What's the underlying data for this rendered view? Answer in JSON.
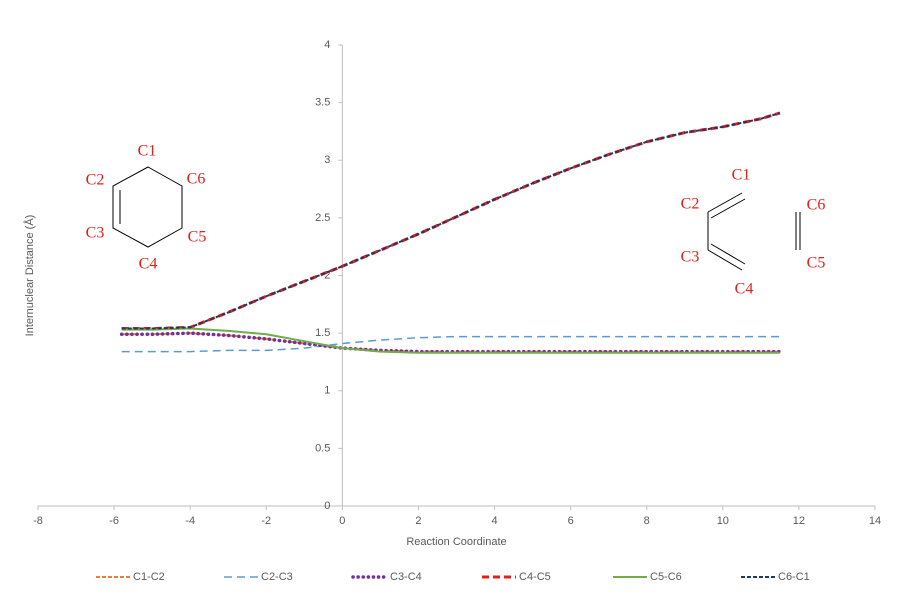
{
  "chart_data": {
    "type": "line",
    "x_label": "Reaction Coordinate",
    "y_label": "Internuclear Distance (Å)",
    "xlim": [
      -8,
      14
    ],
    "xticks": [
      -8,
      -6,
      -4,
      -2,
      0,
      2,
      4,
      6,
      8,
      10,
      12,
      14
    ],
    "ylim": [
      0,
      4
    ],
    "yticks": [
      0,
      0.5,
      1,
      1.5,
      2,
      2.5,
      3,
      3.5,
      4
    ],
    "grid": false,
    "legend": "bottom",
    "x": [
      -5.8,
      -5,
      -4,
      -3,
      -2,
      -1,
      0,
      1,
      2,
      3,
      4,
      5,
      6,
      7,
      8,
      9,
      10,
      11,
      11.5
    ],
    "series": [
      {
        "name": "C1-C2",
        "color": "#ed7d31",
        "line_style": "dashed",
        "values": [
          1.49,
          1.49,
          1.5,
          1.48,
          1.45,
          1.41,
          1.37,
          1.35,
          1.34,
          1.34,
          1.34,
          1.34,
          1.34,
          1.34,
          1.34,
          1.34,
          1.34,
          1.34,
          1.34
        ]
      },
      {
        "name": "C2-C3",
        "color": "#5b9bd5",
        "line_style": "long-dashed",
        "values": [
          1.34,
          1.34,
          1.34,
          1.35,
          1.35,
          1.37,
          1.41,
          1.44,
          1.46,
          1.47,
          1.47,
          1.47,
          1.47,
          1.47,
          1.47,
          1.47,
          1.47,
          1.47,
          1.47
        ]
      },
      {
        "name": "C3-C4",
        "color": "#7030a0",
        "line_style": "dotted",
        "values": [
          1.49,
          1.49,
          1.5,
          1.48,
          1.45,
          1.41,
          1.37,
          1.35,
          1.34,
          1.34,
          1.34,
          1.34,
          1.34,
          1.34,
          1.34,
          1.34,
          1.34,
          1.34,
          1.34
        ]
      },
      {
        "name": "C4-C5",
        "color": "#e0201b",
        "line_style": "bold-dashed",
        "values": [
          1.54,
          1.54,
          1.55,
          1.68,
          1.82,
          1.95,
          2.08,
          2.22,
          2.36,
          2.51,
          2.66,
          2.8,
          2.93,
          3.05,
          3.16,
          3.24,
          3.29,
          3.36,
          3.41
        ]
      },
      {
        "name": "C5-C6",
        "color": "#70ad47",
        "line_style": "solid",
        "values": [
          1.53,
          1.53,
          1.54,
          1.52,
          1.49,
          1.43,
          1.37,
          1.34,
          1.33,
          1.33,
          1.33,
          1.33,
          1.33,
          1.33,
          1.33,
          1.33,
          1.33,
          1.33,
          1.33
        ]
      },
      {
        "name": "C6-C1",
        "color": "#1f3864",
        "line_style": "dashed",
        "values": [
          1.54,
          1.54,
          1.55,
          1.68,
          1.82,
          1.95,
          2.08,
          2.22,
          2.36,
          2.51,
          2.66,
          2.8,
          2.93,
          3.05,
          3.16,
          3.24,
          3.29,
          3.36,
          3.41
        ]
      }
    ],
    "annotations": [
      [
        "C1",
        "C2",
        "C3",
        "C4",
        "C5",
        "C6"
      ],
      [
        "C1",
        "C2",
        "C3",
        "C4",
        "C5",
        "C6"
      ]
    ]
  }
}
